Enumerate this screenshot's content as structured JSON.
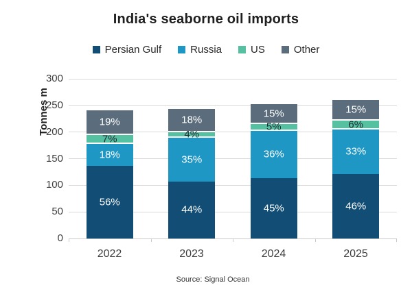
{
  "title": "India's seaborne oil imports",
  "source": "Source: Signal Ocean",
  "chart_data": {
    "type": "bar",
    "stacked": true,
    "title": "India's seaborne oil imports",
    "ylabel": "Tonnes m",
    "xlabel": "",
    "ylim": [
      0,
      300
    ],
    "yticks": [
      0,
      50,
      100,
      150,
      200,
      250,
      300
    ],
    "grid": true,
    "legend_position": "top",
    "categories": [
      "2022",
      "2023",
      "2024",
      "2025"
    ],
    "totals_tonnes_m": [
      243,
      246,
      255,
      263
    ],
    "series": [
      {
        "name": "Persian Gulf",
        "color": "#114d74",
        "label_color": "#ffffff",
        "percentages": [
          56,
          44,
          45,
          46
        ]
      },
      {
        "name": "Russia",
        "color": "#1e97c4",
        "label_color": "#ffffff",
        "percentages": [
          18,
          35,
          36,
          33
        ]
      },
      {
        "name": "US",
        "color": "#55c1a1",
        "label_color": "#1f2a33",
        "percentages": [
          7,
          4,
          5,
          6
        ]
      },
      {
        "name": "Other",
        "color": "#5b6d7c",
        "label_color": "#ffffff",
        "percentages": [
          19,
          18,
          15,
          15
        ]
      }
    ],
    "segment_label_format": "{pct}%"
  }
}
